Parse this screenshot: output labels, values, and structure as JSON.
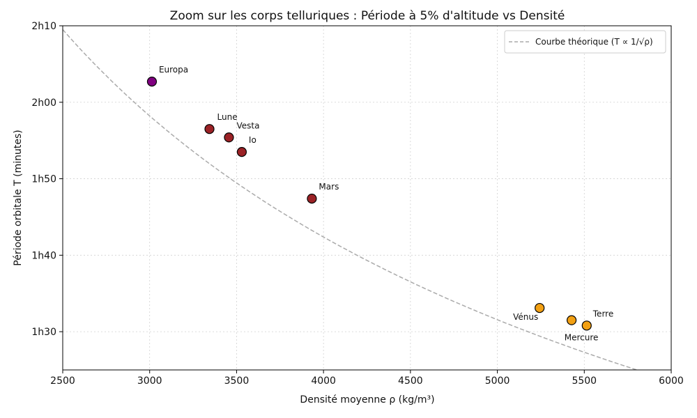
{
  "chart_data": {
    "type": "scatter",
    "title": "Zoom sur les corps telluriques : Période à 5% d'altitude vs Densité",
    "xlabel": "Densité moyenne ρ (kg/m³)",
    "ylabel": "Période orbitale T (minutes)",
    "xlim": [
      2500,
      6000
    ],
    "ylim": [
      85,
      130
    ],
    "x_ticks": [
      {
        "value": 2500,
        "label": "2500"
      },
      {
        "value": 3000,
        "label": "3000"
      },
      {
        "value": 3500,
        "label": "3500"
      },
      {
        "value": 4000,
        "label": "4000"
      },
      {
        "value": 4500,
        "label": "4500"
      },
      {
        "value": 5000,
        "label": "5000"
      },
      {
        "value": 5500,
        "label": "5500"
      },
      {
        "value": 6000,
        "label": "6000"
      }
    ],
    "y_ticks": [
      {
        "value": 90,
        "label": "1h30"
      },
      {
        "value": 100,
        "label": "1h40"
      },
      {
        "value": 110,
        "label": "1h50"
      },
      {
        "value": 120,
        "label": "2h00"
      },
      {
        "value": 130,
        "label": "2h10"
      }
    ],
    "grid": true,
    "legend": {
      "position": "top-right",
      "entry": "Courbe théorique (T ∝ 1/√ρ)"
    },
    "curve": {
      "constant": 6475,
      "style": "dashed",
      "color": "#aaaaaa"
    },
    "points": [
      {
        "name": "Europa",
        "x": 3013,
        "y": 122.7,
        "color": "#800080"
      },
      {
        "name": "Lune",
        "x": 3344,
        "y": 116.5,
        "color": "#9b2226"
      },
      {
        "name": "Vesta",
        "x": 3456,
        "y": 115.4,
        "color": "#9b2226"
      },
      {
        "name": "Io",
        "x": 3530,
        "y": 113.5,
        "color": "#9b2226"
      },
      {
        "name": "Mars",
        "x": 3933,
        "y": 107.4,
        "color": "#9b2226"
      },
      {
        "name": "Vénus",
        "x": 5243,
        "y": 93.1,
        "color": "#f2a013"
      },
      {
        "name": "Terre",
        "x": 5514,
        "y": 90.8,
        "color": "#f2a013"
      },
      {
        "name": "Mercure",
        "x": 5427,
        "y": 91.5,
        "color": "#f2a013"
      }
    ]
  }
}
